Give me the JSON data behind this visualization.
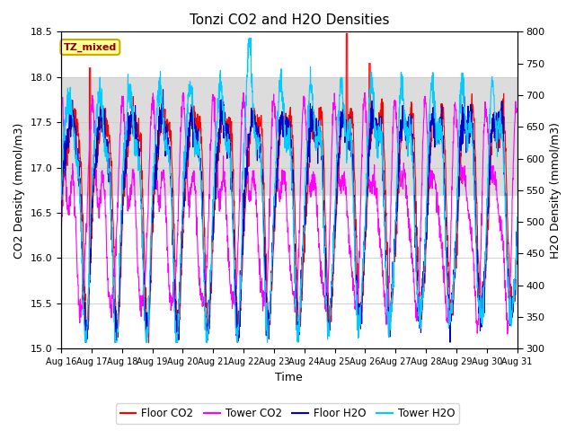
{
  "title": "Tonzi CO2 and H2O Densities",
  "xlabel": "Time",
  "ylabel_left": "CO2 Density (mmol/m3)",
  "ylabel_right": "H2O Density (mmol/m3)",
  "xlim": [
    0,
    15
  ],
  "ylim_left": [
    15.0,
    18.5
  ],
  "ylim_right": [
    300,
    800
  ],
  "xtick_labels": [
    "Aug 16",
    "Aug 17",
    "Aug 18",
    "Aug 19",
    "Aug 20",
    "Aug 21",
    "Aug 22",
    "Aug 23",
    "Aug 24",
    "Aug 25",
    "Aug 26",
    "Aug 27",
    "Aug 28",
    "Aug 29",
    "Aug 30",
    "Aug 31"
  ],
  "ytick_left": [
    15.0,
    15.5,
    16.0,
    16.5,
    17.0,
    17.5,
    18.0,
    18.5
  ],
  "ytick_right": [
    300,
    350,
    400,
    450,
    500,
    550,
    600,
    650,
    700,
    750,
    800
  ],
  "gray_band": [
    16.7,
    18.0
  ],
  "annotation_text": "TZ_mixed",
  "annotation_bg": "#FFFF99",
  "annotation_border": "#CCAA00",
  "legend_entries": [
    "Floor CO2",
    "Tower CO2",
    "Floor H2O",
    "Tower H2O"
  ],
  "colors": {
    "floor_co2": "#FF0000",
    "tower_co2": "#FF00FF",
    "floor_h2o": "#0000CC",
    "tower_h2o": "#00CCFF"
  },
  "plot_bg": "#FFFFFF",
  "fig_bg": "#FFFFFF",
  "grid_color": "#CCCCCC",
  "n_points": 2000
}
